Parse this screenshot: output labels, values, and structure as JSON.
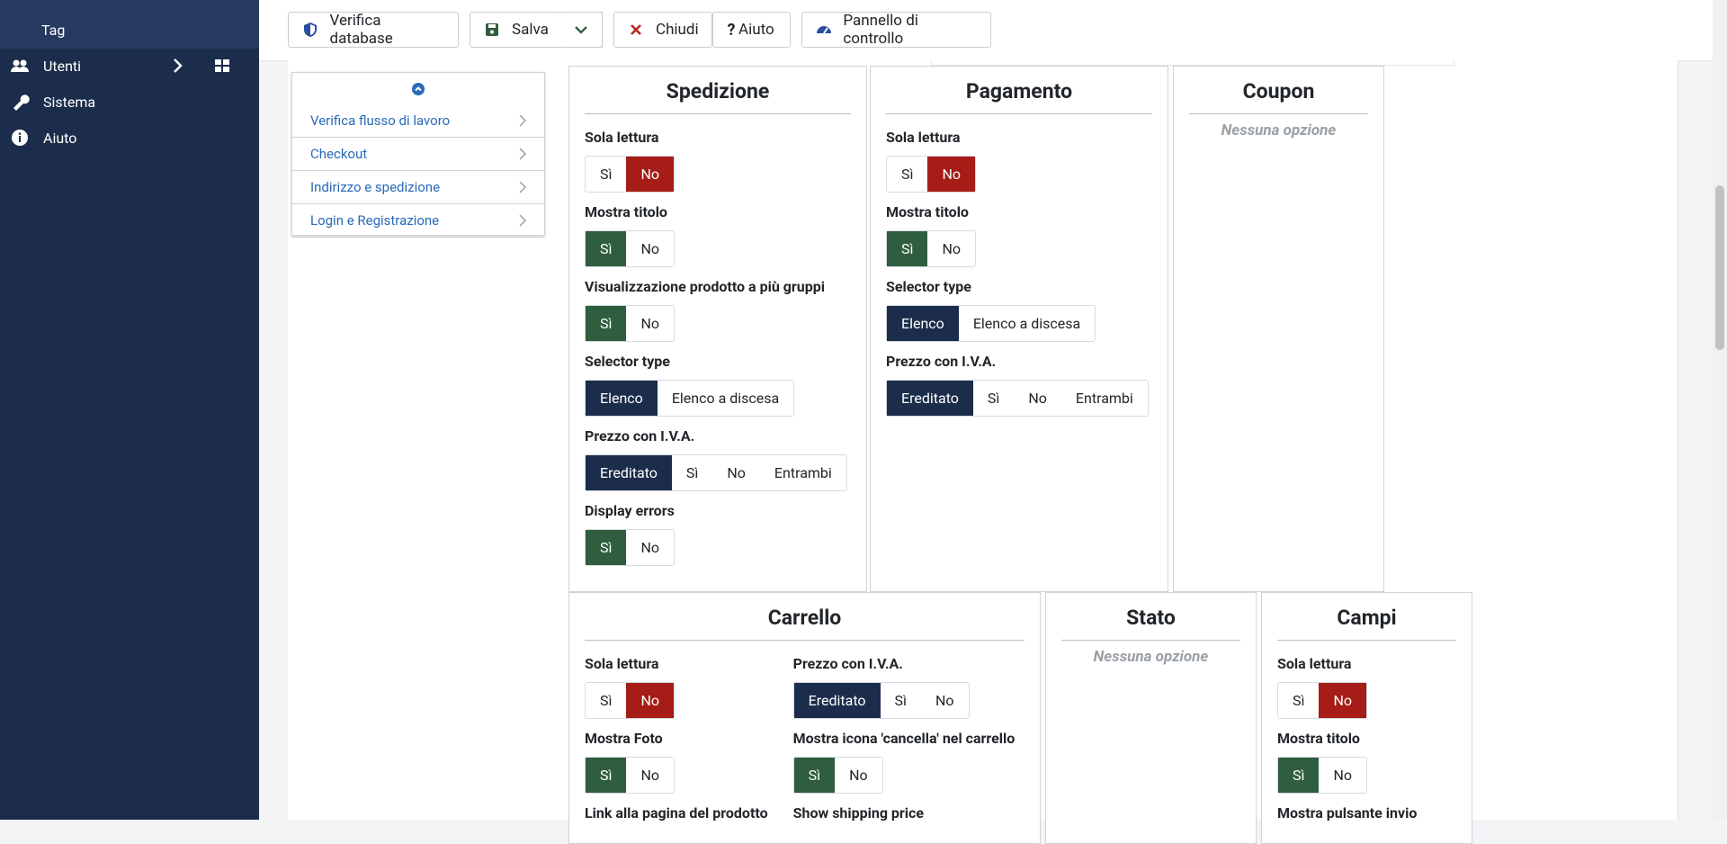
{
  "sidebar": {
    "items": [
      {
        "label": "Tag"
      },
      {
        "label": "Utenti"
      },
      {
        "label": "Sistema"
      },
      {
        "label": "Aiuto"
      }
    ]
  },
  "toolbar": {
    "buttons": [
      "Verifica database",
      "Salva",
      "Chiudi",
      "Aiuto",
      "Pannello di controllo"
    ]
  },
  "menu": {
    "items": [
      "Verifica flusso di lavoro",
      "Checkout",
      "Indirizzo e spedizione",
      "Login e Registrazione"
    ]
  },
  "panels": [
    {
      "title": "Spedizione",
      "columns": [
        [
          {
            "label": "Sola lettura",
            "options": [
              "Sì",
              "No"
            ],
            "selected": 1,
            "style": "red"
          },
          {
            "label": "Mostra titolo",
            "options": [
              "Sì",
              "No"
            ],
            "selected": 0,
            "style": "green"
          },
          {
            "label": "Visualizzazione prodotto a più gruppi",
            "options": [
              "Sì",
              "No"
            ],
            "selected": 0,
            "style": "green"
          },
          {
            "label": "Selector type",
            "options": [
              "Elenco",
              "Elenco a discesa"
            ],
            "selected": 0,
            "style": "navy"
          },
          {
            "label": "Prezzo con I.V.A.",
            "options": [
              "Ereditato",
              "Sì",
              "No",
              "Entrambi"
            ],
            "selected": 0,
            "style": "navy"
          },
          {
            "label": "Display errors",
            "options": [
              "Sì",
              "No"
            ],
            "selected": 0,
            "style": "green"
          }
        ]
      ]
    },
    {
      "title": "Pagamento",
      "columns": [
        [
          {
            "label": "Sola lettura",
            "options": [
              "Sì",
              "No"
            ],
            "selected": 1,
            "style": "red"
          },
          {
            "label": "Mostra titolo",
            "options": [
              "Sì",
              "No"
            ],
            "selected": 0,
            "style": "green"
          },
          {
            "label": "Selector type",
            "options": [
              "Elenco",
              "Elenco a discesa"
            ],
            "selected": 0,
            "style": "navy"
          },
          {
            "label": "Prezzo con I.V.A.",
            "options": [
              "Ereditato",
              "Sì",
              "No",
              "Entrambi"
            ],
            "selected": 0,
            "style": "navy"
          }
        ]
      ]
    },
    {
      "title": "Coupon",
      "empty": "Nessuna opzione"
    },
    {
      "title": "Carrello",
      "columns": [
        [
          {
            "label": "Sola lettura",
            "options": [
              "Sì",
              "No"
            ],
            "selected": 1,
            "style": "red"
          },
          {
            "label": "Mostra Foto",
            "options": [
              "Sì",
              "No"
            ],
            "selected": 0,
            "style": "green"
          },
          {
            "label": "Link alla pagina del prodotto"
          }
        ],
        [
          {
            "label": "Prezzo con I.V.A.",
            "options": [
              "Ereditato",
              "Sì",
              "No"
            ],
            "selected": 0,
            "style": "navy"
          },
          {
            "label": "Mostra icona 'cancella' nel carrello",
            "options": [
              "Sì",
              "No"
            ],
            "selected": 0,
            "style": "green"
          },
          {
            "label": "Show shipping price"
          }
        ]
      ]
    },
    {
      "title": "Stato",
      "empty": "Nessuna opzione"
    },
    {
      "title": "Campi",
      "columns": [
        [
          {
            "label": "Sola lettura",
            "options": [
              "Sì",
              "No"
            ],
            "selected": 1,
            "style": "red"
          },
          {
            "label": "Mostra titolo",
            "options": [
              "Sì",
              "No"
            ],
            "selected": 0,
            "style": "green"
          },
          {
            "label": "Mostra pulsante invio"
          }
        ]
      ]
    }
  ]
}
